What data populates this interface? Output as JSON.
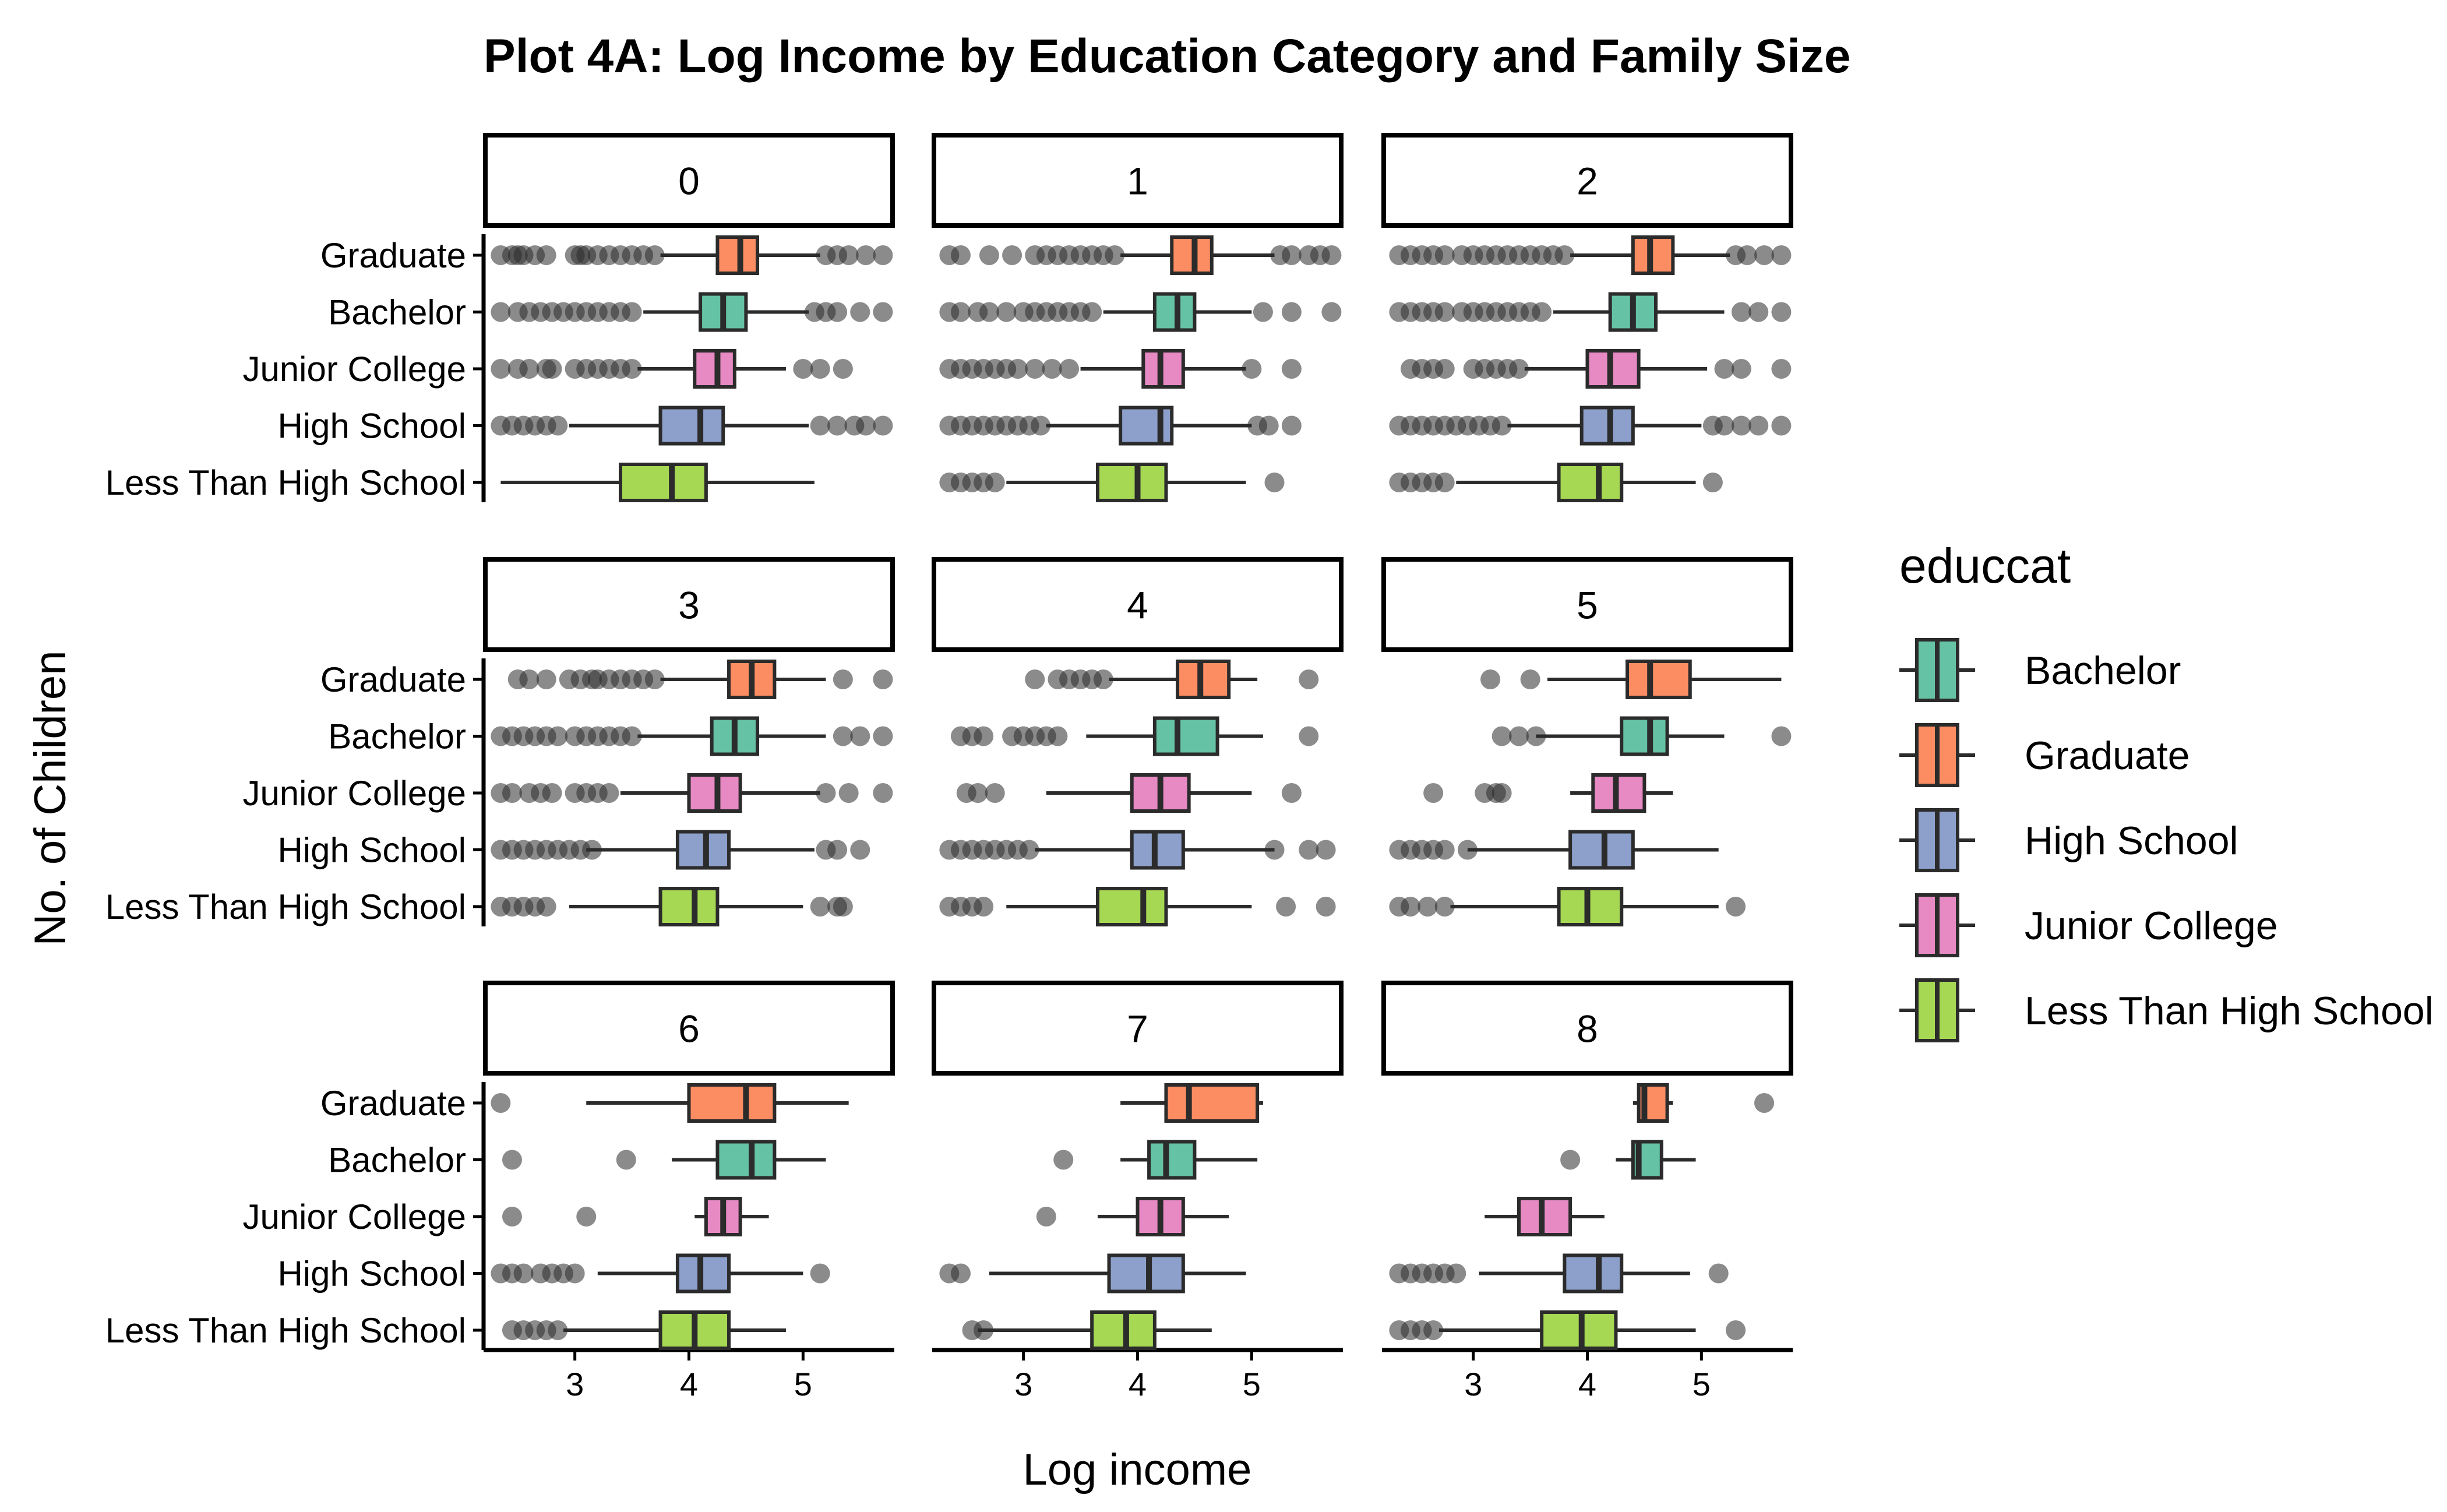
{
  "chart_data": {
    "type": "boxplot",
    "title": "Plot 4A: Log Income by Education Category and Family Size",
    "xlabel": "Log income",
    "ylabel": "No. of Children",
    "xlim": [
      2.2,
      5.8
    ],
    "x_ticks": [
      3,
      4,
      5
    ],
    "categories": [
      "Graduate",
      "Bachelor",
      "Junior College",
      "High School",
      "Less Than High School"
    ],
    "legend": {
      "title": "educcat",
      "position": "right",
      "entries": [
        {
          "label": "Bachelor",
          "color": "#66c2a5"
        },
        {
          "label": "Graduate",
          "color": "#fc8d62"
        },
        {
          "label": "High School",
          "color": "#8da0cb"
        },
        {
          "label": "Junior College",
          "color": "#e78ac3"
        },
        {
          "label": "Less Than High School",
          "color": "#a6d854"
        }
      ]
    },
    "category_colors": {
      "Graduate": "#fc8d62",
      "Bachelor": "#66c2a5",
      "Junior College": "#e78ac3",
      "High School": "#8da0cb",
      "Less Than High School": "#a6d854"
    },
    "facets": [
      {
        "label": "0",
        "boxes": [
          {
            "category": "Graduate",
            "whisker_low": 3.75,
            "q1": 4.25,
            "median": 4.45,
            "q3": 4.6,
            "whisker_high": 5.15,
            "outliers": [
              2.35,
              2.45,
              2.5,
              2.55,
              2.65,
              2.75,
              3.0,
              3.05,
              3.1,
              3.2,
              3.3,
              3.4,
              3.5,
              3.6,
              3.7,
              5.2,
              5.3,
              5.4,
              5.55,
              5.7
            ]
          },
          {
            "category": "Bachelor",
            "whisker_low": 3.6,
            "q1": 4.1,
            "median": 4.3,
            "q3": 4.5,
            "whisker_high": 5.05,
            "outliers": [
              2.35,
              2.5,
              2.6,
              2.7,
              2.8,
              2.9,
              3.0,
              3.1,
              3.2,
              3.3,
              3.4,
              3.5,
              5.1,
              5.2,
              5.3,
              5.5,
              5.7
            ]
          },
          {
            "category": "Junior College",
            "whisker_low": 3.55,
            "q1": 4.05,
            "median": 4.25,
            "q3": 4.4,
            "whisker_high": 4.85,
            "outliers": [
              2.35,
              2.5,
              2.6,
              2.75,
              2.8,
              3.0,
              3.1,
              3.2,
              3.3,
              3.4,
              3.5,
              5.0,
              5.15,
              5.35
            ]
          },
          {
            "category": "High School",
            "whisker_low": 2.95,
            "q1": 3.75,
            "median": 4.1,
            "q3": 4.3,
            "whisker_high": 5.05,
            "outliers": [
              2.35,
              2.45,
              2.55,
              2.65,
              2.75,
              2.85,
              5.15,
              5.3,
              5.45,
              5.55,
              5.7
            ]
          },
          {
            "category": "Less Than High School",
            "whisker_low": 2.35,
            "q1": 3.4,
            "median": 3.85,
            "q3": 4.15,
            "whisker_high": 5.1,
            "outliers": []
          }
        ]
      },
      {
        "label": "1",
        "boxes": [
          {
            "category": "Graduate",
            "whisker_low": 3.85,
            "q1": 4.3,
            "median": 4.5,
            "q3": 4.65,
            "whisker_high": 5.2,
            "outliers": [
              2.35,
              2.45,
              2.7,
              2.9,
              3.1,
              3.2,
              3.3,
              3.4,
              3.5,
              3.6,
              3.7,
              3.8,
              5.25,
              5.35,
              5.5,
              5.6,
              5.7
            ]
          },
          {
            "category": "Bachelor",
            "whisker_low": 3.7,
            "q1": 4.15,
            "median": 4.35,
            "q3": 4.5,
            "whisker_high": 5.0,
            "outliers": [
              2.35,
              2.45,
              2.6,
              2.7,
              2.85,
              3.0,
              3.1,
              3.2,
              3.3,
              3.4,
              3.5,
              3.6,
              5.1,
              5.35,
              5.7
            ]
          },
          {
            "category": "Junior College",
            "whisker_low": 3.5,
            "q1": 4.05,
            "median": 4.2,
            "q3": 4.4,
            "whisker_high": 4.95,
            "outliers": [
              2.35,
              2.45,
              2.55,
              2.65,
              2.75,
              2.85,
              2.95,
              3.1,
              3.25,
              3.4,
              5.0,
              5.35
            ]
          },
          {
            "category": "High School",
            "whisker_low": 3.2,
            "q1": 3.85,
            "median": 4.2,
            "q3": 4.3,
            "whisker_high": 5.0,
            "outliers": [
              2.35,
              2.45,
              2.55,
              2.65,
              2.75,
              2.85,
              2.95,
              3.05,
              3.15,
              5.05,
              5.15,
              5.35
            ]
          },
          {
            "category": "Less Than High School",
            "whisker_low": 2.85,
            "q1": 3.65,
            "median": 4.0,
            "q3": 4.25,
            "whisker_high": 4.95,
            "outliers": [
              2.35,
              2.45,
              2.55,
              2.65,
              2.75,
              5.2
            ]
          }
        ]
      },
      {
        "label": "2",
        "boxes": [
          {
            "category": "Graduate",
            "whisker_low": 3.85,
            "q1": 4.4,
            "median": 4.55,
            "q3": 4.75,
            "whisker_high": 5.25,
            "outliers": [
              2.35,
              2.45,
              2.55,
              2.65,
              2.75,
              2.9,
              3.0,
              3.1,
              3.2,
              3.3,
              3.4,
              3.5,
              3.6,
              3.7,
              3.8,
              5.3,
              5.4,
              5.55,
              5.7
            ]
          },
          {
            "category": "Bachelor",
            "whisker_low": 3.7,
            "q1": 4.2,
            "median": 4.4,
            "q3": 4.6,
            "whisker_high": 5.2,
            "outliers": [
              2.35,
              2.45,
              2.55,
              2.65,
              2.75,
              2.9,
              3.0,
              3.1,
              3.2,
              3.3,
              3.4,
              3.5,
              3.6,
              5.35,
              5.5,
              5.7
            ]
          },
          {
            "category": "Junior College",
            "whisker_low": 3.45,
            "q1": 4.0,
            "median": 4.2,
            "q3": 4.45,
            "whisker_high": 5.05,
            "outliers": [
              2.45,
              2.55,
              2.65,
              2.75,
              3.0,
              3.1,
              3.2,
              3.3,
              3.4,
              5.2,
              5.35,
              5.7
            ]
          },
          {
            "category": "High School",
            "whisker_low": 3.3,
            "q1": 3.95,
            "median": 4.2,
            "q3": 4.4,
            "whisker_high": 5.0,
            "outliers": [
              2.35,
              2.45,
              2.55,
              2.65,
              2.75,
              2.85,
              2.95,
              3.05,
              3.15,
              3.25,
              5.1,
              5.2,
              5.35,
              5.5,
              5.7
            ]
          },
          {
            "category": "Less Than High School",
            "whisker_low": 2.85,
            "q1": 3.75,
            "median": 4.1,
            "q3": 4.3,
            "whisker_high": 4.95,
            "outliers": [
              2.35,
              2.45,
              2.55,
              2.65,
              2.75,
              5.1
            ]
          }
        ]
      },
      {
        "label": "3",
        "boxes": [
          {
            "category": "Graduate",
            "whisker_low": 3.75,
            "q1": 4.35,
            "median": 4.55,
            "q3": 4.75,
            "whisker_high": 5.2,
            "outliers": [
              2.5,
              2.6,
              2.75,
              2.95,
              3.05,
              3.15,
              3.2,
              3.3,
              3.4,
              3.5,
              3.6,
              3.7,
              5.35,
              5.7
            ]
          },
          {
            "category": "Bachelor",
            "whisker_low": 3.55,
            "q1": 4.2,
            "median": 4.4,
            "q3": 4.6,
            "whisker_high": 5.2,
            "outliers": [
              2.35,
              2.45,
              2.55,
              2.65,
              2.75,
              2.85,
              3.0,
              3.1,
              3.2,
              3.3,
              3.4,
              3.5,
              5.35,
              5.5,
              5.7
            ]
          },
          {
            "category": "Junior College",
            "whisker_low": 3.4,
            "q1": 4.0,
            "median": 4.25,
            "q3": 4.45,
            "whisker_high": 5.15,
            "outliers": [
              2.35,
              2.45,
              2.6,
              2.7,
              2.8,
              3.0,
              3.1,
              3.2,
              3.3,
              5.2,
              5.4,
              5.7
            ]
          },
          {
            "category": "High School",
            "whisker_low": 3.1,
            "q1": 3.9,
            "median": 4.15,
            "q3": 4.35,
            "whisker_high": 5.1,
            "outliers": [
              2.35,
              2.45,
              2.55,
              2.65,
              2.75,
              2.85,
              2.95,
              3.05,
              3.15,
              5.2,
              5.3,
              5.5
            ]
          },
          {
            "category": "Less Than High School",
            "whisker_low": 2.95,
            "q1": 3.75,
            "median": 4.05,
            "q3": 4.25,
            "whisker_high": 5.0,
            "outliers": [
              2.35,
              2.45,
              2.55,
              2.65,
              2.75,
              5.15,
              5.3,
              5.35
            ]
          }
        ]
      },
      {
        "label": "4",
        "boxes": [
          {
            "category": "Graduate",
            "whisker_low": 3.75,
            "q1": 4.35,
            "median": 4.55,
            "q3": 4.8,
            "whisker_high": 5.05,
            "outliers": [
              3.1,
              3.3,
              3.4,
              3.5,
              3.6,
              3.7,
              5.5
            ]
          },
          {
            "category": "Bachelor",
            "whisker_low": 3.55,
            "q1": 4.15,
            "median": 4.35,
            "q3": 4.7,
            "whisker_high": 5.1,
            "outliers": [
              2.45,
              2.55,
              2.65,
              2.9,
              3.0,
              3.1,
              3.2,
              3.3,
              5.5
            ]
          },
          {
            "category": "Junior College",
            "whisker_low": 3.2,
            "q1": 3.95,
            "median": 4.2,
            "q3": 4.45,
            "whisker_high": 5.0,
            "outliers": [
              2.5,
              2.6,
              2.75,
              5.35
            ]
          },
          {
            "category": "High School",
            "whisker_low": 3.1,
            "q1": 3.95,
            "median": 4.15,
            "q3": 4.4,
            "whisker_high": 5.2,
            "outliers": [
              2.35,
              2.45,
              2.55,
              2.65,
              2.75,
              2.85,
              2.95,
              3.05,
              5.2,
              5.5,
              5.65
            ]
          },
          {
            "category": "Less Than High School",
            "whisker_low": 2.85,
            "q1": 3.65,
            "median": 4.05,
            "q3": 4.25,
            "whisker_high": 5.0,
            "outliers": [
              2.35,
              2.45,
              2.55,
              2.65,
              5.3,
              5.65
            ]
          }
        ]
      },
      {
        "label": "5",
        "boxes": [
          {
            "category": "Graduate",
            "whisker_low": 3.65,
            "q1": 4.35,
            "median": 4.55,
            "q3": 4.9,
            "whisker_high": 5.7,
            "outliers": [
              3.15,
              3.5
            ]
          },
          {
            "category": "Bachelor",
            "whisker_low": 3.55,
            "q1": 4.3,
            "median": 4.55,
            "q3": 4.7,
            "whisker_high": 5.2,
            "outliers": [
              3.25,
              3.4,
              3.55,
              5.7
            ]
          },
          {
            "category": "Junior College",
            "whisker_low": 3.85,
            "q1": 4.05,
            "median": 4.25,
            "q3": 4.5,
            "whisker_high": 4.75,
            "outliers": [
              2.65,
              3.1,
              3.2,
              3.25
            ]
          },
          {
            "category": "High School",
            "whisker_low": 2.95,
            "q1": 3.85,
            "median": 4.15,
            "q3": 4.4,
            "whisker_high": 5.15,
            "outliers": [
              2.35,
              2.45,
              2.55,
              2.65,
              2.75,
              2.95
            ]
          },
          {
            "category": "Less Than High School",
            "whisker_low": 2.8,
            "q1": 3.75,
            "median": 4.0,
            "q3": 4.3,
            "whisker_high": 5.15,
            "outliers": [
              2.35,
              2.45,
              2.6,
              2.75,
              5.3
            ]
          }
        ]
      },
      {
        "label": "6",
        "boxes": [
          {
            "category": "Graduate",
            "whisker_low": 3.1,
            "q1": 4.0,
            "median": 4.5,
            "q3": 4.75,
            "whisker_high": 5.4,
            "outliers": [
              2.35
            ]
          },
          {
            "category": "Bachelor",
            "whisker_low": 3.85,
            "q1": 4.25,
            "median": 4.55,
            "q3": 4.75,
            "whisker_high": 5.2,
            "outliers": [
              2.45,
              3.45
            ]
          },
          {
            "category": "Junior College",
            "whisker_low": 4.05,
            "q1": 4.15,
            "median": 4.3,
            "q3": 4.45,
            "whisker_high": 4.7,
            "outliers": [
              2.45,
              3.1
            ]
          },
          {
            "category": "High School",
            "whisker_low": 3.2,
            "q1": 3.9,
            "median": 4.1,
            "q3": 4.35,
            "whisker_high": 5.0,
            "outliers": [
              2.35,
              2.45,
              2.55,
              2.7,
              2.8,
              2.9,
              3.0,
              5.15
            ]
          },
          {
            "category": "Less Than High School",
            "whisker_low": 2.9,
            "q1": 3.75,
            "median": 4.05,
            "q3": 4.35,
            "whisker_high": 4.85,
            "outliers": [
              2.45,
              2.55,
              2.65,
              2.75,
              2.85
            ]
          }
        ]
      },
      {
        "label": "7",
        "boxes": [
          {
            "category": "Graduate",
            "whisker_low": 3.85,
            "q1": 4.25,
            "median": 4.45,
            "q3": 5.05,
            "whisker_high": 5.1,
            "outliers": []
          },
          {
            "category": "Bachelor",
            "whisker_low": 3.85,
            "q1": 4.1,
            "median": 4.25,
            "q3": 4.5,
            "whisker_high": 5.05,
            "outliers": [
              3.35
            ]
          },
          {
            "category": "Junior College",
            "whisker_low": 3.65,
            "q1": 4.0,
            "median": 4.2,
            "q3": 4.4,
            "whisker_high": 4.8,
            "outliers": [
              3.2
            ]
          },
          {
            "category": "High School",
            "whisker_low": 2.7,
            "q1": 3.75,
            "median": 4.1,
            "q3": 4.4,
            "whisker_high": 4.95,
            "outliers": [
              2.35,
              2.45
            ]
          },
          {
            "category": "Less Than High School",
            "whisker_low": 2.6,
            "q1": 3.6,
            "median": 3.9,
            "q3": 4.15,
            "whisker_high": 4.65,
            "outliers": [
              2.55,
              2.65
            ]
          }
        ]
      },
      {
        "label": "8",
        "boxes": [
          {
            "category": "Graduate",
            "whisker_low": 4.4,
            "q1": 4.45,
            "median": 4.5,
            "q3": 4.7,
            "whisker_high": 4.75,
            "outliers": [
              5.55
            ]
          },
          {
            "category": "Bachelor",
            "whisker_low": 4.25,
            "q1": 4.4,
            "median": 4.45,
            "q3": 4.65,
            "whisker_high": 4.95,
            "outliers": [
              3.85
            ]
          },
          {
            "category": "Junior College",
            "whisker_low": 3.1,
            "q1": 3.4,
            "median": 3.6,
            "q3": 3.85,
            "whisker_high": 4.15,
            "outliers": []
          },
          {
            "category": "High School",
            "whisker_low": 3.05,
            "q1": 3.8,
            "median": 4.1,
            "q3": 4.3,
            "whisker_high": 4.9,
            "outliers": [
              2.35,
              2.45,
              2.55,
              2.65,
              2.75,
              2.85,
              5.15
            ]
          },
          {
            "category": "Less Than High School",
            "whisker_low": 2.7,
            "q1": 3.6,
            "median": 3.95,
            "q3": 4.25,
            "whisker_high": 4.95,
            "outliers": [
              2.35,
              2.45,
              2.55,
              2.65,
              5.3
            ]
          }
        ]
      }
    ]
  }
}
